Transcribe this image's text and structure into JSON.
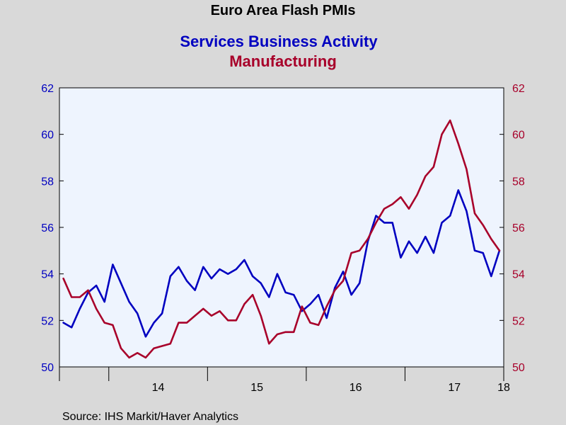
{
  "chart_data": {
    "type": "line",
    "title": "Euro Area Flash PMIs",
    "x_tick_labels": [
      "14",
      "15",
      "16",
      "17",
      "18"
    ],
    "xlim": [
      2013.5,
      2018.0
    ],
    "y_left": {
      "ticks": [
        50,
        52,
        54,
        56,
        58,
        60,
        62
      ],
      "ylim": [
        50,
        62
      ]
    },
    "y_right": {
      "ticks": [
        50,
        52,
        54,
        56,
        58,
        60,
        62
      ],
      "ylim": [
        50,
        62
      ]
    },
    "grid": false,
    "plot_background": "#eef4fe",
    "x_start": 2013.54,
    "x_step": 0.08333,
    "series": [
      {
        "name": "Services Business Activity",
        "color": "#0000c0",
        "axis": "left",
        "values": [
          51.9,
          51.7,
          52.5,
          53.2,
          53.5,
          52.8,
          54.4,
          53.6,
          52.8,
          52.3,
          51.3,
          51.9,
          52.3,
          53.9,
          54.3,
          53.7,
          53.3,
          54.3,
          53.8,
          54.2,
          54.0,
          54.2,
          54.6,
          53.9,
          53.6,
          53.0,
          54.0,
          53.2,
          53.1,
          52.4,
          52.7,
          53.1,
          52.1,
          53.4,
          54.1,
          53.1,
          53.6,
          55.4,
          56.5,
          56.2,
          56.2,
          54.7,
          55.4,
          54.9,
          55.6,
          54.9,
          56.2,
          56.5,
          57.6,
          56.7,
          55.0,
          54.9,
          53.9,
          55.0
        ]
      },
      {
        "name": "Manufacturing",
        "color": "#a8002a",
        "axis": "right",
        "values": [
          53.8,
          53.0,
          53.0,
          53.3,
          52.5,
          51.9,
          51.8,
          50.8,
          50.4,
          50.6,
          50.4,
          50.8,
          50.9,
          51.0,
          51.9,
          51.9,
          52.2,
          52.5,
          52.2,
          52.4,
          52.0,
          52.0,
          52.7,
          53.1,
          52.2,
          51.0,
          51.4,
          51.5,
          51.5,
          52.6,
          51.9,
          51.8,
          52.6,
          53.3,
          53.7,
          54.9,
          55.0,
          55.5,
          56.2,
          56.8,
          57.0,
          57.3,
          56.8,
          57.4,
          58.2,
          58.6,
          60.0,
          60.6,
          59.6,
          58.5,
          56.6,
          56.1,
          55.5,
          55.0
        ]
      }
    ]
  },
  "source": "Source:  IHS Markit/Haver Analytics"
}
